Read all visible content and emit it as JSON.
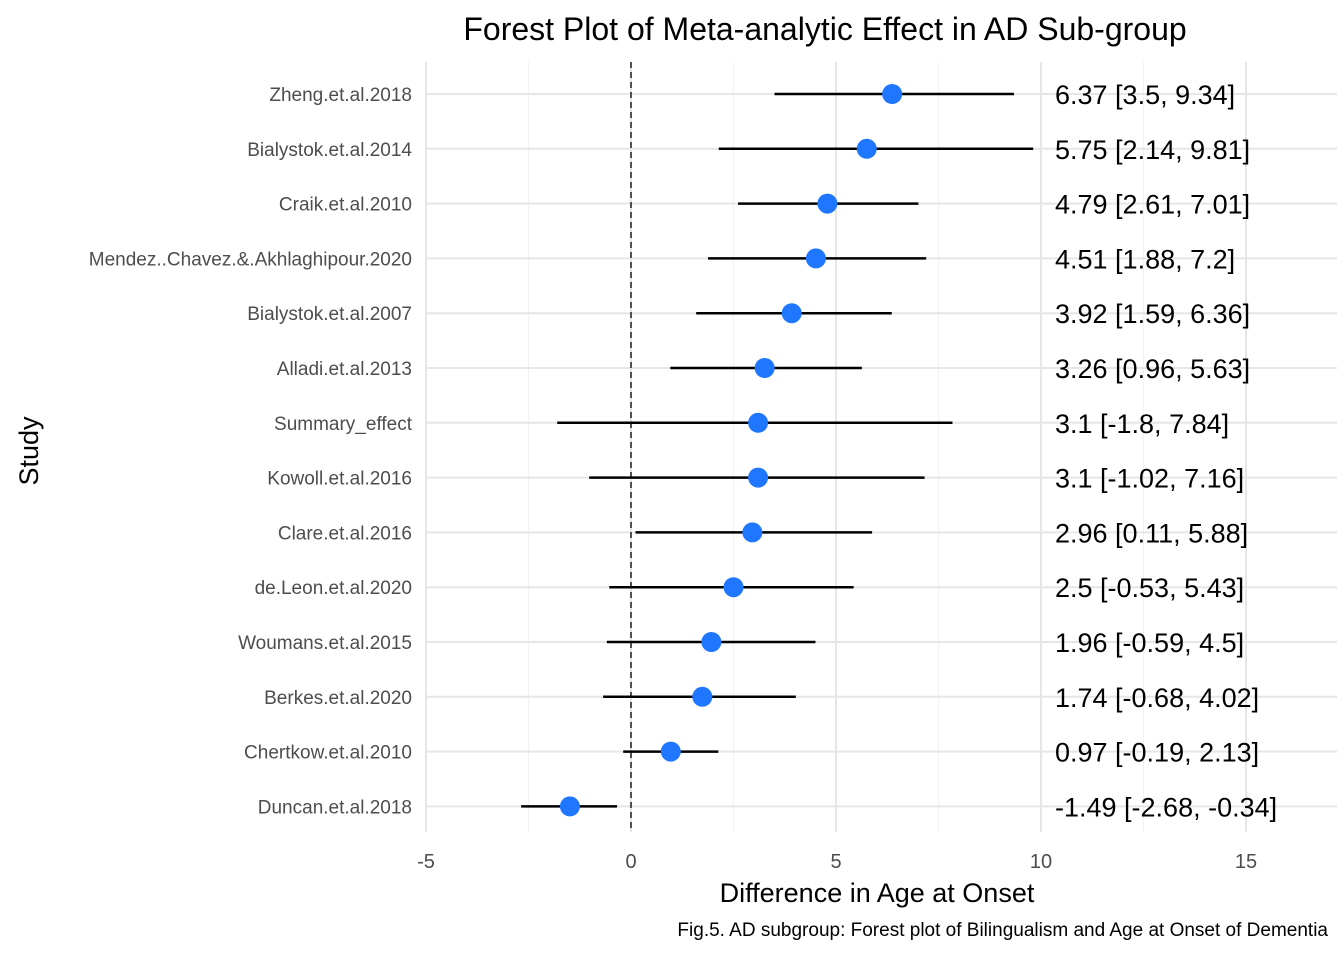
{
  "chart_data": {
    "type": "forest",
    "title": "Forest Plot of Meta-analytic Effect in AD Sub-group",
    "xlabel": "Difference in Age at Onset",
    "ylabel": "Study",
    "xlim": [
      -5,
      15
    ],
    "x_ticks": [
      -5,
      0,
      5,
      10,
      15
    ],
    "reference_line": 0,
    "grid": true,
    "point_color": "#1f77ff",
    "studies": [
      {
        "label": "Zheng.et.al.2018",
        "estimate": 6.37,
        "lower": 3.5,
        "upper": 9.34,
        "text": "6.37 [3.5, 9.34]"
      },
      {
        "label": "Bialystok.et.al.2014",
        "estimate": 5.75,
        "lower": 2.14,
        "upper": 9.81,
        "text": "5.75 [2.14, 9.81]"
      },
      {
        "label": "Craik.et.al.2010",
        "estimate": 4.79,
        "lower": 2.61,
        "upper": 7.01,
        "text": "4.79 [2.61, 7.01]"
      },
      {
        "label": "Mendez..Chavez.&.Akhlaghipour.2020",
        "estimate": 4.51,
        "lower": 1.88,
        "upper": 7.2,
        "text": "4.51 [1.88, 7.2]"
      },
      {
        "label": "Bialystok.et.al.2007",
        "estimate": 3.92,
        "lower": 1.59,
        "upper": 6.36,
        "text": "3.92 [1.59, 6.36]"
      },
      {
        "label": "Alladi.et.al.2013",
        "estimate": 3.26,
        "lower": 0.96,
        "upper": 5.63,
        "text": "3.26 [0.96, 5.63]"
      },
      {
        "label": "Summary_effect",
        "estimate": 3.1,
        "lower": -1.8,
        "upper": 7.84,
        "text": "3.1 [-1.8, 7.84]"
      },
      {
        "label": "Kowoll.et.al.2016",
        "estimate": 3.1,
        "lower": -1.02,
        "upper": 7.16,
        "text": "3.1 [-1.02, 7.16]"
      },
      {
        "label": "Clare.et.al.2016",
        "estimate": 2.96,
        "lower": 0.11,
        "upper": 5.88,
        "text": "2.96 [0.11, 5.88]"
      },
      {
        "label": "de.Leon.et.al.2020",
        "estimate": 2.5,
        "lower": -0.53,
        "upper": 5.43,
        "text": "2.5 [-0.53, 5.43]"
      },
      {
        "label": "Woumans.et.al.2015",
        "estimate": 1.96,
        "lower": -0.59,
        "upper": 4.5,
        "text": "1.96 [-0.59, 4.5]"
      },
      {
        "label": "Berkes.et.al.2020",
        "estimate": 1.74,
        "lower": -0.68,
        "upper": 4.02,
        "text": "1.74 [-0.68, 4.02]"
      },
      {
        "label": "Chertkow.et.al.2010",
        "estimate": 0.97,
        "lower": -0.19,
        "upper": 2.13,
        "text": "0.97 [-0.19, 2.13]"
      },
      {
        "label": "Duncan.et.al.2018",
        "estimate": -1.49,
        "lower": -2.68,
        "upper": -0.34,
        "text": "-1.49 [-2.68, -0.34]"
      }
    ],
    "caption": "Fig.5. AD subgroup: Forest plot of Bilingualism and Age at Onset of Dementia"
  }
}
